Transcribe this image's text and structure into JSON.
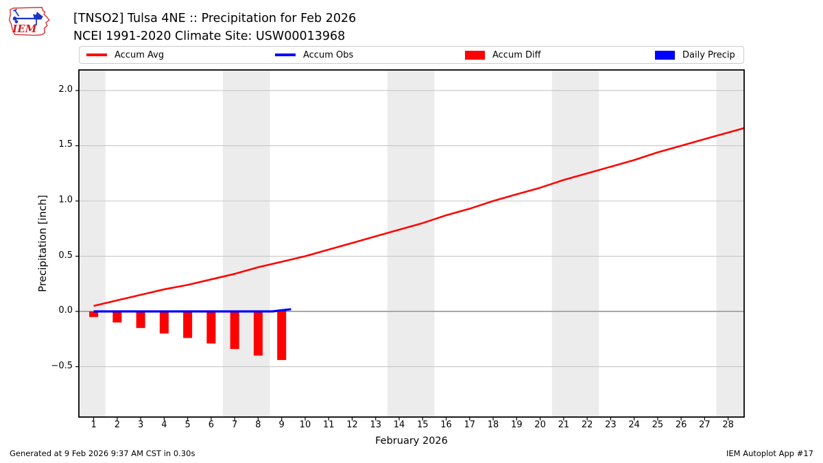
{
  "header": {
    "logo_text": "IEM",
    "title_line1": "[TNSO2] Tulsa 4NE :: Precipitation for Feb 2026",
    "title_line2": "NCEI 1991-2020 Climate Site: USW00013968"
  },
  "footer": {
    "left": "Generated at 9 Feb 2026 9:37 AM CST in 0.30s",
    "right": "IEM Autoplot App #17"
  },
  "chart_data": {
    "type": "line",
    "title": "[TNSO2] Tulsa 4NE :: Precipitation for Feb 2026",
    "subtitle": "NCEI 1991-2020 Climate Site: USW00013968",
    "xlabel": "February 2026",
    "ylabel": "Precipitation [inch]",
    "xlim": [
      0.37,
      28.68
    ],
    "ylim": [
      -0.956,
      2.186
    ],
    "grid": "horizontal",
    "legend_position": "top",
    "x_ticks": [
      1,
      2,
      3,
      4,
      5,
      6,
      7,
      8,
      9,
      10,
      11,
      12,
      13,
      14,
      15,
      16,
      17,
      18,
      19,
      20,
      21,
      22,
      23,
      24,
      25,
      26,
      27,
      28
    ],
    "y_ticks": [
      {
        "value": -0.5,
        "label": "−0.5"
      },
      {
        "value": 0.0,
        "label": "0.0"
      },
      {
        "value": 0.5,
        "label": "0.5"
      },
      {
        "value": 1.0,
        "label": "1.0"
      },
      {
        "value": 1.5,
        "label": "1.5"
      },
      {
        "value": 2.0,
        "label": "2.0"
      }
    ],
    "weekend_bands": [
      [
        0.37,
        1.5
      ],
      [
        6.5,
        8.5
      ],
      [
        13.5,
        15.5
      ],
      [
        20.5,
        22.5
      ],
      [
        27.5,
        28.68
      ]
    ],
    "bar_width_days": 0.38,
    "colors": {
      "band": "#ececec",
      "grid": "#c6c6c6",
      "zero_grid": "#a8a8a8",
      "accum_avg": "#ff0000",
      "accum_obs": "#0000ff",
      "accum_diff": "#ff0000",
      "daily_precip": "#0000ff"
    },
    "legend": [
      {
        "label": "Accum Avg",
        "type": "line",
        "color": "#ff0000"
      },
      {
        "label": "Accum Obs",
        "type": "line",
        "color": "#0000ff"
      },
      {
        "label": "Accum Diff",
        "type": "box",
        "color": "#ff0000"
      },
      {
        "label": "Daily Precip",
        "type": "box",
        "color": "#0000ff"
      }
    ],
    "series": [
      {
        "name": "Accum Diff",
        "type": "bar",
        "color": "#ff0000",
        "x": [
          1,
          2,
          3,
          4,
          5,
          6,
          7,
          8,
          9
        ],
        "y": [
          -0.05,
          -0.1,
          -0.15,
          -0.2,
          -0.24,
          -0.29,
          -0.34,
          -0.4,
          -0.44
        ]
      },
      {
        "name": "Daily Precip",
        "type": "bar",
        "color": "#0000ff",
        "x": [
          9
        ],
        "y": [
          0.01
        ]
      },
      {
        "name": "Accum Obs",
        "type": "line",
        "color": "#0000ff",
        "x": [
          1,
          2,
          3,
          4,
          5,
          6,
          7,
          8,
          8.6,
          9,
          9.4
        ],
        "y": [
          0,
          0,
          0,
          0,
          0,
          0,
          0,
          0,
          0,
          0.01,
          0.02
        ]
      },
      {
        "name": "Accum Avg",
        "type": "line",
        "color": "#ff0000",
        "x": [
          1,
          2,
          3,
          4,
          5,
          6,
          7,
          8,
          9,
          10,
          11,
          12,
          13,
          14,
          15,
          16,
          17,
          18,
          19,
          20,
          21,
          22,
          23,
          24,
          25,
          26,
          27,
          28,
          28.68
        ],
        "y": [
          0.05,
          0.1,
          0.15,
          0.2,
          0.24,
          0.29,
          0.34,
          0.4,
          0.45,
          0.5,
          0.56,
          0.62,
          0.68,
          0.74,
          0.8,
          0.87,
          0.93,
          1.0,
          1.06,
          1.12,
          1.19,
          1.25,
          1.31,
          1.37,
          1.44,
          1.5,
          1.56,
          1.62,
          1.66
        ]
      }
    ]
  }
}
